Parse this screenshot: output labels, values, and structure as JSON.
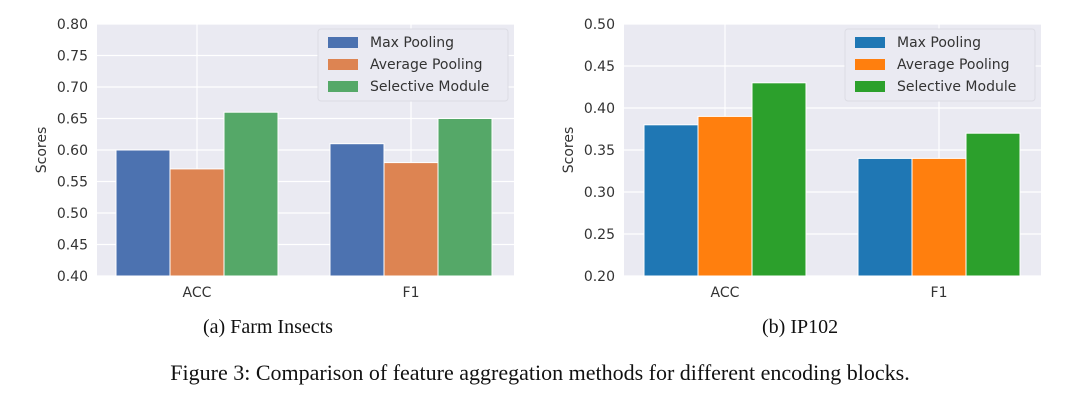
{
  "chart_data": [
    {
      "type": "bar",
      "subtitle": "(a) Farm Insects",
      "categories": [
        "ACC",
        "F1"
      ],
      "series": [
        {
          "name": "Max Pooling",
          "values": [
            0.6,
            0.61
          ],
          "color": "#4C72B0"
        },
        {
          "name": "Average Pooling",
          "values": [
            0.57,
            0.58
          ],
          "color": "#DD8452"
        },
        {
          "name": "Selective Module",
          "values": [
            0.66,
            0.65
          ],
          "color": "#55A868"
        }
      ],
      "ylabel": "Scores",
      "ylim": [
        0.4,
        0.8
      ],
      "yticks": [
        "0.40",
        "0.45",
        "0.50",
        "0.55",
        "0.60",
        "0.65",
        "0.70",
        "0.75",
        "0.80"
      ],
      "grid": true,
      "legend": "top-right"
    },
    {
      "type": "bar",
      "subtitle": "(b) IP102",
      "categories": [
        "ACC",
        "F1"
      ],
      "series": [
        {
          "name": "Max Pooling",
          "values": [
            0.38,
            0.34
          ],
          "color": "#1F77B4"
        },
        {
          "name": "Average Pooling",
          "values": [
            0.39,
            0.34
          ],
          "color": "#FF7F0E"
        },
        {
          "name": "Selective Module",
          "values": [
            0.43,
            0.37
          ],
          "color": "#2CA02C"
        }
      ],
      "ylabel": "Scores",
      "ylim": [
        0.2,
        0.5
      ],
      "yticks": [
        "0.20",
        "0.25",
        "0.30",
        "0.35",
        "0.40",
        "0.45",
        "0.50"
      ],
      "grid": true,
      "legend": "top-right"
    }
  ],
  "captions": {
    "a": "(a) Farm Insects",
    "b": "(b) IP102",
    "figure": "Figure 3: Comparison of feature aggregation methods for different encoding blocks."
  },
  "style": {
    "plot_bg": "#EAEAF2",
    "grid_color": "#FFFFFF"
  }
}
